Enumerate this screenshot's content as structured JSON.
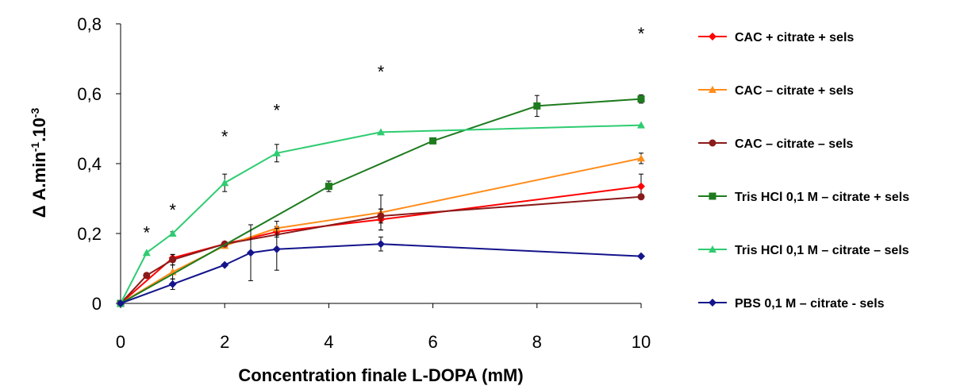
{
  "chart_data": {
    "type": "line",
    "title": "",
    "xlabel": "Concentration finale L-DOPA (mM)",
    "ylabel_main": "Δ A.min",
    "ylabel_sup1": "-1",
    "ylabel_mid": ".10",
    "ylabel_sup2": "-3",
    "xlim": [
      0,
      10
    ],
    "ylim": [
      0,
      0.8
    ],
    "x_ticks": [
      "0",
      "2",
      "4",
      "6",
      "8",
      "10"
    ],
    "y_ticks": [
      "0",
      "0,2",
      "0,4",
      "0,6",
      "0,8"
    ],
    "grid": false,
    "legend_position": "right",
    "series": [
      {
        "name": "CAC + citrate + sels",
        "color": "#ff0000",
        "marker": "diamond",
        "x": [
          0,
          1,
          2,
          3,
          5,
          10
        ],
        "y": [
          0,
          0.13,
          0.17,
          0.205,
          0.24,
          0.335
        ],
        "err": [
          0,
          0.01,
          0,
          0.015,
          0.03,
          0.035
        ]
      },
      {
        "name": "CAC – citrate + sels",
        "color": "#ff8c1a",
        "marker": "triangle",
        "x": [
          0,
          1,
          2,
          3,
          5,
          10
        ],
        "y": [
          0,
          0.09,
          0.165,
          0.215,
          0.26,
          0.415
        ],
        "err": [
          0,
          0.02,
          0,
          0.02,
          0.05,
          0.015
        ]
      },
      {
        "name": "CAC – citrate – sels",
        "color": "#8b1a1a",
        "marker": "circle",
        "x": [
          0,
          0.5,
          1,
          2,
          5,
          10
        ],
        "y": [
          0,
          0.08,
          0.125,
          0.17,
          0.25,
          0.305
        ],
        "err": [
          0,
          0,
          0.015,
          0,
          0.02,
          0
        ]
      },
      {
        "name": "Tris HCl 0,1 M – citrate + sels",
        "color": "#1e7b1e",
        "marker": "square",
        "x": [
          0,
          4,
          6,
          8,
          10
        ],
        "y": [
          0,
          0.335,
          0.465,
          0.565,
          0.585
        ],
        "err": [
          0,
          0.015,
          0,
          0.03,
          0.012
        ]
      },
      {
        "name": "Tris HCl 0,1 M – citrate – sels",
        "color": "#2ecc71",
        "marker": "triangle",
        "x": [
          0,
          0.5,
          1,
          2,
          3,
          5,
          10
        ],
        "y": [
          0,
          0.145,
          0.2,
          0.345,
          0.43,
          0.49,
          0.51
        ],
        "err": [
          0,
          0,
          0.005,
          0.025,
          0.025,
          0,
          0
        ]
      },
      {
        "name": "PBS 0,1 M – citrate - sels",
        "color": "#14148c",
        "marker": "diamond",
        "x": [
          0,
          1,
          2,
          2.5,
          3,
          5,
          10
        ],
        "y": [
          0,
          0.055,
          0.11,
          0.145,
          0.155,
          0.17,
          0.135
        ],
        "err": [
          0,
          0.015,
          0,
          0.08,
          0.06,
          0.02,
          0
        ]
      }
    ],
    "annotations": [
      {
        "text": "*",
        "x": 0.5,
        "y": 0.185
      },
      {
        "text": "*",
        "x": 1,
        "y": 0.25
      },
      {
        "text": "*",
        "x": 2,
        "y": 0.46
      },
      {
        "text": "*",
        "x": 3,
        "y": 0.535
      },
      {
        "text": "*",
        "x": 5,
        "y": 0.645
      },
      {
        "text": "*",
        "x": 10,
        "y": 0.755
      }
    ]
  }
}
